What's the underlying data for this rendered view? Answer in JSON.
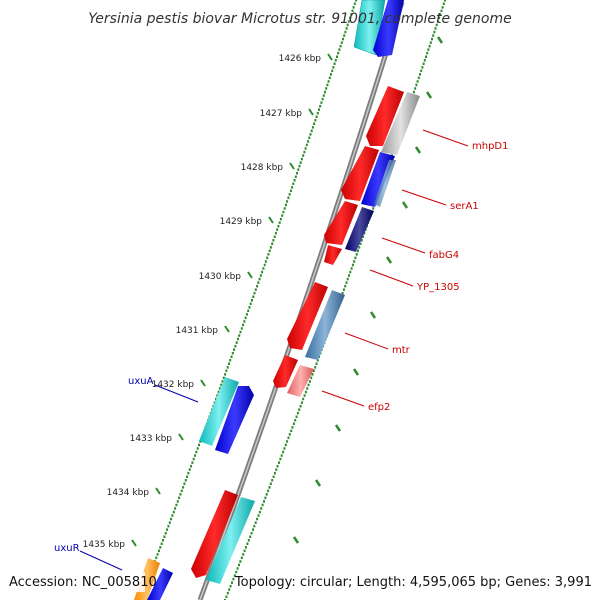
{
  "title": "Yersinia pestis biovar Microtus str. 91001, complete genome",
  "footer": {
    "accession": "Accession: NC_005810",
    "summary": "Topology: circular; Length: 4,595,065 bp; Genes: 3,991"
  },
  "colors": {
    "backbone": "#8c8c8c",
    "ruler_dots": "#2e8b2e",
    "forward_label": "#cc0000",
    "reverse_label": "#0000aa"
  },
  "ticks": [
    "1426 kbp",
    "1427 kbp",
    "1428 kbp",
    "1429 kbp",
    "1430 kbp",
    "1431 kbp",
    "1432 kbp",
    "1433 kbp",
    "1434 kbp",
    "1435 kbp"
  ],
  "labels": {
    "forward": [
      "mhpD1",
      "serA1",
      "fabG4",
      "YP_1305",
      "mtr",
      "efp2"
    ],
    "reverse": [
      "uxuA",
      "uxuR"
    ]
  }
}
